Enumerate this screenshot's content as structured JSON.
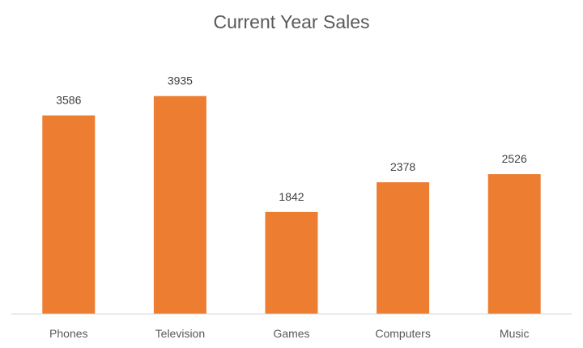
{
  "chart_data": {
    "type": "bar",
    "title": "Current Year Sales",
    "categories": [
      "Phones",
      "Television",
      "Games",
      "Computers",
      "Music"
    ],
    "series": [
      {
        "values": [
          3586,
          3935,
          1842,
          2378,
          2526
        ]
      }
    ],
    "data_labels": true,
    "ylim": [
      0,
      4500
    ],
    "grid": false,
    "legend": "none",
    "bar_color": "#ED7D31",
    "axis_color": "#D9D9D9"
  }
}
